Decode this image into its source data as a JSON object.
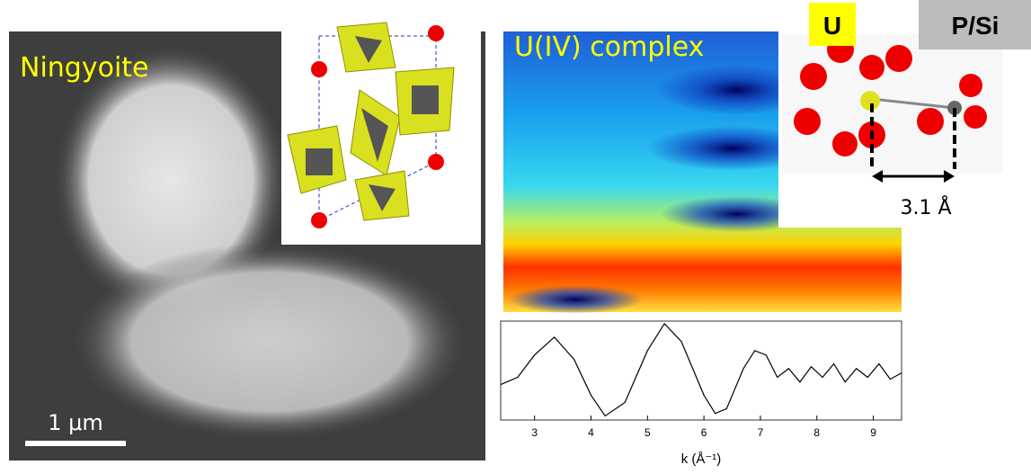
{
  "panels": {
    "micrograph": {
      "label": "Ningyoite",
      "scale_bar": "1 μm"
    },
    "wavelet": {
      "label": "U(IV) complex"
    },
    "structure": {
      "atom_a": "U",
      "atom_b": "P/Si",
      "distance": "3.1 Å"
    }
  },
  "chart_data": {
    "type": "line",
    "x_label": "k (Å⁻¹)",
    "x": [
      2.4,
      2.7,
      3.0,
      3.35,
      3.7,
      4.0,
      4.25,
      4.6,
      5.0,
      5.3,
      5.6,
      6.0,
      6.2,
      6.4,
      6.7,
      6.9,
      7.1,
      7.3,
      7.5,
      7.7,
      7.9,
      8.1,
      8.3,
      8.5,
      8.7,
      8.9,
      9.1,
      9.3,
      9.5
    ],
    "series": [
      {
        "color": "#000000",
        "values": [
          -0.37,
          -0.14,
          0.57,
          1.14,
          0.43,
          -0.71,
          -1.37,
          -0.94,
          0.71,
          1.57,
          1.0,
          -0.71,
          -1.29,
          -1.14,
          0.14,
          0.71,
          0.57,
          -0.14,
          0.14,
          -0.29,
          0.2,
          -0.14,
          0.29,
          -0.29,
          0.14,
          -0.14,
          0.29,
          -0.2,
          0
        ]
      }
    ],
    "xlim": [
      2.4,
      9.5
    ],
    "ylim": [
      -1.5,
      1.65
    ],
    "xticks": [
      3,
      4,
      5,
      6,
      7,
      8,
      9
    ]
  }
}
